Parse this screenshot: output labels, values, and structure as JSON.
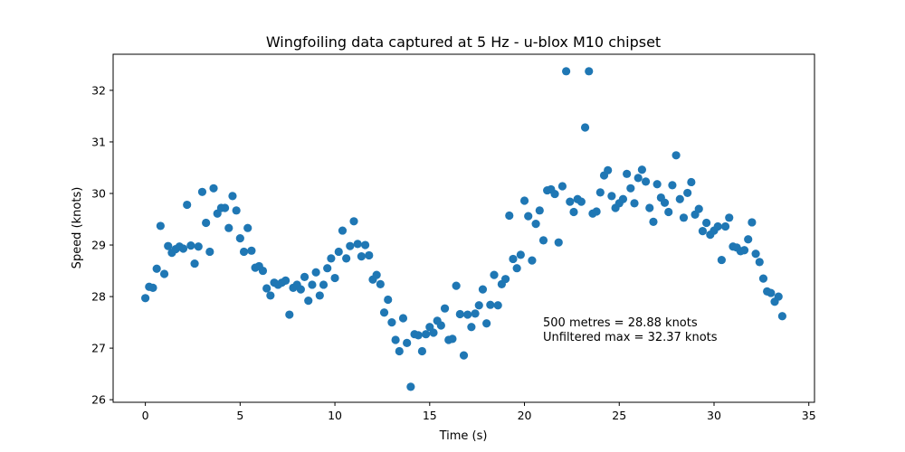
{
  "chart_data": {
    "type": "scatter",
    "title": "Wingfoiling data captured at 5 Hz - u-blox M10 chipset",
    "xlabel": "Time (s)",
    "ylabel": "Speed (knots)",
    "xlim": [
      -1.7,
      35.3
    ],
    "ylim": [
      25.95,
      32.7
    ],
    "xticks": [
      0,
      5,
      10,
      15,
      20,
      25,
      30,
      35
    ],
    "yticks": [
      26,
      27,
      28,
      29,
      30,
      31,
      32
    ],
    "grid": false,
    "marker_color": "#1f77b4",
    "annotations": [
      "500 metres = 28.88 knots",
      "Unfiltered max = 32.37 knots"
    ],
    "series": [
      {
        "x": [
          0.0,
          0.2,
          0.4,
          0.6,
          0.8,
          1.0,
          1.2,
          1.4,
          1.6,
          1.8,
          2.0,
          2.2,
          2.4,
          2.6,
          2.8,
          3.0,
          3.2,
          3.4,
          3.6,
          3.8,
          4.0,
          4.2,
          4.4,
          4.6,
          4.8,
          5.0,
          5.2,
          5.4,
          5.6,
          5.8,
          6.0,
          6.2,
          6.4,
          6.6,
          6.8,
          7.0,
          7.2,
          7.4,
          7.6,
          7.8,
          8.0,
          8.2,
          8.4,
          8.6,
          8.8,
          9.0,
          9.2,
          9.4,
          9.6,
          9.8,
          10.0,
          10.2,
          10.4,
          10.6,
          10.8,
          11.0,
          11.2,
          11.4,
          11.6,
          11.8,
          12.0,
          12.2,
          12.4,
          12.6,
          12.8,
          13.0,
          13.2,
          13.4,
          13.6,
          13.8,
          14.0,
          14.2,
          14.4,
          14.6,
          14.8,
          15.0,
          15.2,
          15.4,
          15.6,
          15.8,
          16.0,
          16.2,
          16.4,
          16.6,
          16.8,
          17.0,
          17.2,
          17.4,
          17.6,
          17.8,
          18.0,
          18.2,
          18.4,
          18.6,
          18.8,
          19.0,
          19.2,
          19.4,
          19.6,
          19.8,
          20.0,
          20.2,
          20.4,
          20.6,
          20.8,
          21.0,
          21.2,
          21.4,
          21.6,
          21.8,
          22.0,
          22.2,
          22.4,
          22.6,
          22.8,
          23.0,
          23.2,
          23.4,
          23.6,
          23.8,
          24.0,
          24.2,
          24.4,
          24.6,
          24.8,
          25.0,
          25.2,
          25.4,
          25.6,
          25.8,
          26.0,
          26.2,
          26.4,
          26.6,
          26.8,
          27.0,
          27.2,
          27.4,
          27.6,
          27.8,
          28.0,
          28.2,
          28.4,
          28.6,
          28.8,
          29.0,
          29.2,
          29.4,
          29.6,
          29.8,
          30.0,
          30.2,
          30.4,
          30.6,
          30.8,
          31.0,
          31.2,
          31.4,
          31.6,
          31.8,
          32.0,
          32.2,
          32.4,
          32.6,
          32.8,
          33.0,
          33.2,
          33.4,
          33.6
        ],
        "y": [
          27.97,
          28.19,
          28.17,
          28.54,
          29.37,
          28.44,
          28.98,
          28.85,
          28.92,
          28.97,
          28.93,
          29.78,
          28.99,
          28.64,
          28.97,
          30.03,
          29.43,
          28.87,
          30.1,
          29.61,
          29.72,
          29.72,
          29.33,
          29.95,
          29.67,
          29.13,
          28.87,
          29.33,
          28.89,
          28.56,
          28.59,
          28.5,
          28.16,
          28.02,
          28.27,
          28.23,
          28.27,
          28.31,
          27.65,
          28.17,
          28.23,
          28.14,
          28.38,
          27.92,
          28.23,
          28.47,
          28.02,
          28.23,
          28.55,
          28.74,
          28.36,
          28.87,
          29.28,
          28.74,
          28.98,
          29.46,
          29.02,
          28.78,
          29.0,
          28.8,
          28.33,
          28.42,
          28.24,
          27.69,
          27.94,
          27.5,
          27.16,
          26.94,
          27.58,
          27.1,
          26.25,
          27.27,
          27.25,
          26.94,
          27.27,
          27.41,
          27.3,
          27.53,
          27.44,
          27.77,
          27.16,
          27.18,
          28.21,
          27.66,
          26.86,
          27.65,
          27.41,
          27.67,
          27.83,
          28.14,
          27.48,
          27.84,
          28.42,
          27.83,
          28.24,
          28.34,
          29.57,
          28.73,
          28.55,
          28.81,
          29.86,
          29.56,
          28.7,
          29.41,
          29.67,
          29.09,
          30.06,
          30.08,
          29.99,
          29.05,
          30.14,
          32.37,
          29.84,
          29.64,
          29.89,
          29.84,
          31.28,
          32.37,
          29.61,
          29.65,
          30.02,
          30.35,
          30.45,
          29.95,
          29.72,
          29.81,
          29.89,
          30.38,
          30.1,
          29.81,
          30.3,
          30.46,
          30.23,
          29.72,
          29.45,
          30.18,
          29.92,
          29.82,
          29.64,
          30.16,
          30.74,
          29.89,
          29.53,
          30.01,
          30.22,
          29.59,
          29.7,
          29.27,
          29.43,
          29.2,
          29.28,
          29.36,
          28.71,
          29.36,
          29.53,
          28.97,
          28.95,
          28.88,
          28.9,
          29.11,
          29.44,
          28.83,
          28.67,
          28.35,
          28.1,
          28.07,
          27.9,
          28.0,
          27.62
        ]
      }
    ]
  }
}
